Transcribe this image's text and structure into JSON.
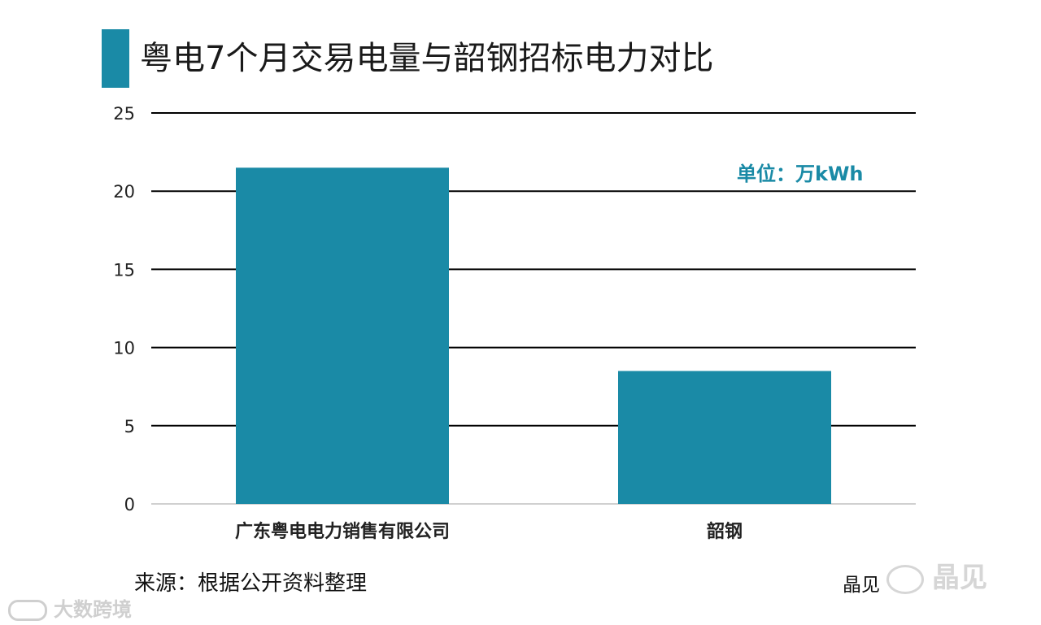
{
  "colors": {
    "bar": "#1a8aa6",
    "accent": "#1a8aa6",
    "grid": "#000000",
    "text": "#222222"
  },
  "header": {
    "title": "粤电7个月交易电量与韶钢招标电力对比"
  },
  "chart_data": {
    "type": "bar",
    "categories": [
      "广东粤电电力销售有限公司",
      "韶钢"
    ],
    "values": [
      21.5,
      8.5
    ],
    "title": "粤电7个月交易电量与韶钢招标电力对比",
    "xlabel": "",
    "ylabel": "",
    "ylim": [
      0,
      25
    ],
    "yticks": [
      "0",
      "5",
      "10",
      "15",
      "20",
      "25"
    ],
    "grid": true,
    "unit_label": "单位：万kWh"
  },
  "footer": {
    "source": "来源：根据公开资料整理",
    "author": "晶见"
  },
  "watermarks": {
    "brand": "晶见",
    "bottom": "大数跨境"
  }
}
